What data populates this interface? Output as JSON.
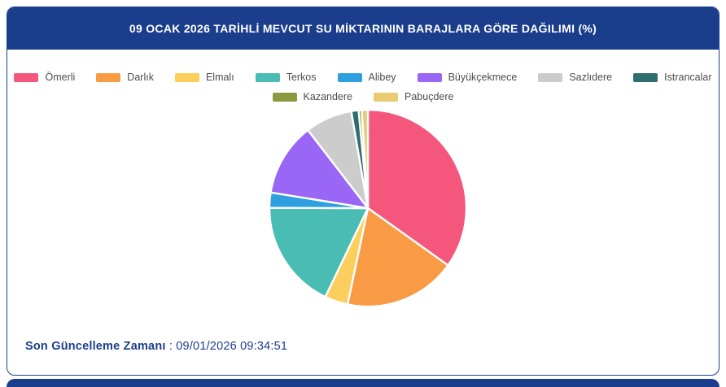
{
  "header": {
    "title": "09 OCAK 2026 TARİHLİ MEVCUT SU MİKTARININ BARAJLARA GÖRE DAĞILIMI (%)"
  },
  "footer": {
    "label": "Son Güncelleme Zamanı",
    "separator": " : ",
    "value": "09/01/2026 09:34:51"
  },
  "theme": {
    "navy": "#1B3E8C",
    "card_border": "#1B3E8C",
    "legend_text": "#4d4d4d",
    "slice_gap": "#FFFFFF"
  },
  "chart_data": {
    "type": "pie",
    "title": "09 OCAK 2026 TARİHLİ MEVCUT SU MİKTARININ BARAJLARA GÖRE DAĞILIMI (%)",
    "categories": [
      "Ömerli",
      "Darlık",
      "Elmalı",
      "Terkos",
      "Alibey",
      "Büyükçekmece",
      "Sazlıdere",
      "Istrancalar",
      "Kazandere",
      "Pabuçdere"
    ],
    "values": [
      34.8,
      18.4,
      3.8,
      17.9,
      2.5,
      12.0,
      7.7,
      1.2,
      0.5,
      1.0
    ],
    "colors": [
      "#F4567C",
      "#F99B45",
      "#FBCE5D",
      "#49BCB4",
      "#2F9FE0",
      "#9966F5",
      "#CCCCCC",
      "#2F6E6E",
      "#8A9A3E",
      "#EACB72"
    ],
    "unit": "%",
    "start_angle_deg": 0,
    "direction": "clockwise",
    "legend_position": "top",
    "legend_rows": [
      8,
      2
    ],
    "labels_shown": false
  }
}
